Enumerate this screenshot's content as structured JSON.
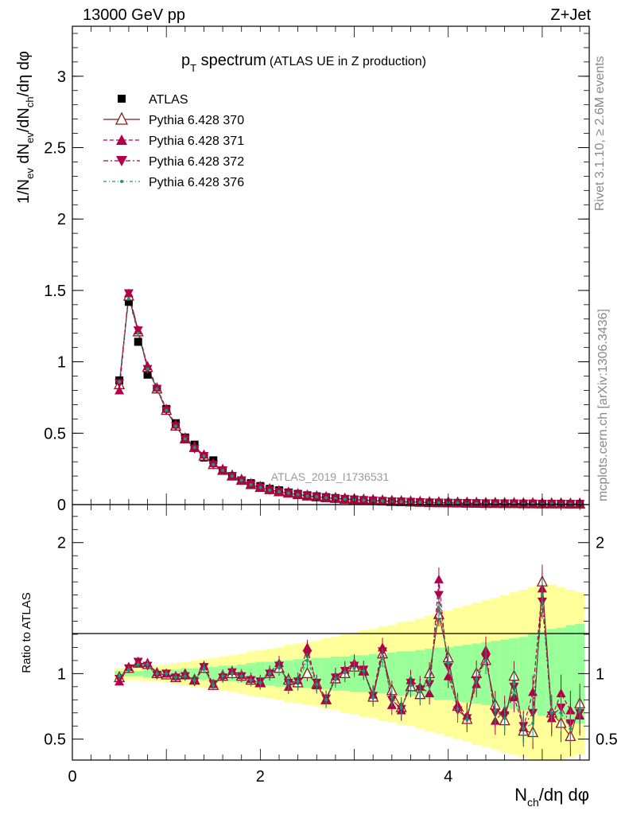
{
  "header": {
    "left": "13000 GeV pp",
    "right": "Z+Jet"
  },
  "side_labels": {
    "top": "Rivet 3.1.10, ≥ 2.6M events",
    "bottom": "mcplots.cern.ch [arXiv:1306.3436]"
  },
  "chart_data": [
    {
      "type": "scatter",
      "panel": "main",
      "title_main": "p",
      "title_sub": "T",
      "title_rest": " spectrum",
      "title_paren": "(ATLAS UE in Z production)",
      "watermark": "ATLAS_2019_I1736531",
      "ylabel": "1/N_ev dN_ev/dN_ch/dη dφ",
      "xlim": [
        0,
        5.5
      ],
      "ylim": [
        0,
        3.35
      ],
      "yticks": [
        0,
        0.5,
        1,
        1.5,
        2,
        2.5,
        3
      ],
      "ytick_labels": [
        "0",
        "0.5",
        "1",
        "1.5",
        "2",
        "2.5",
        "3"
      ],
      "x": [
        0.5,
        0.6,
        0.7,
        0.8,
        0.9,
        1.0,
        1.1,
        1.2,
        1.3,
        1.4,
        1.5,
        1.6,
        1.7,
        1.8,
        1.9,
        2.0,
        2.1,
        2.2,
        2.3,
        2.4,
        2.5,
        2.6,
        2.7,
        2.8,
        2.9,
        3.0,
        3.1,
        3.2,
        3.3,
        3.4,
        3.5,
        3.6,
        3.7,
        3.8,
        3.9,
        4.0,
        4.1,
        4.2,
        4.3,
        4.4,
        4.5,
        4.6,
        4.7,
        4.8,
        4.9,
        5.0,
        5.1,
        5.2,
        5.3,
        5.4
      ],
      "series": [
        {
          "name": "ATLAS",
          "color": "#000000",
          "marker": "square",
          "values": [
            0.87,
            1.42,
            1.14,
            0.91,
            0.81,
            0.67,
            0.57,
            0.47,
            0.42,
            0.33,
            0.31,
            0.24,
            0.2,
            0.17,
            0.15,
            0.13,
            0.11,
            0.1,
            0.085,
            0.075,
            0.065,
            0.058,
            0.052,
            0.046,
            0.04,
            0.036,
            0.032,
            0.029,
            0.026,
            0.023,
            0.021,
            0.019,
            0.017,
            0.015,
            0.014,
            0.013,
            0.012,
            0.011,
            0.01,
            0.009,
            0.009,
            0.008,
            0.008,
            0.007,
            0.007,
            0.006,
            0.006,
            0.006,
            0.005,
            0.005
          ]
        },
        {
          "name": "Pythia 6.428 370",
          "color": "#8b1a1a",
          "marker": "triangle-open",
          "dash": "",
          "values": [
            0.84,
            1.46,
            1.21,
            0.96,
            0.81,
            0.66,
            0.55,
            0.46,
            0.4,
            0.34,
            0.28,
            0.24,
            0.2,
            0.17,
            0.14,
            0.12,
            0.105,
            0.09,
            0.08,
            0.07,
            0.06,
            0.054,
            0.048,
            0.043,
            0.038,
            0.034,
            0.031,
            0.028,
            0.025,
            0.022,
            0.02,
            0.018,
            0.016,
            0.014,
            0.013,
            0.012,
            0.011,
            0.01,
            0.009,
            0.008,
            0.008,
            0.007,
            0.007,
            0.006,
            0.006,
            0.005,
            0.005,
            0.005,
            0.004,
            0.004
          ]
        },
        {
          "name": "Pythia 6.428 371",
          "color": "#b0004a",
          "marker": "triangle-up",
          "dash": "5,3",
          "values": [
            0.8,
            1.48,
            1.22,
            0.97,
            0.82,
            0.67,
            0.56,
            0.46,
            0.4,
            0.35,
            0.29,
            0.24,
            0.2,
            0.17,
            0.14,
            0.12,
            0.105,
            0.09,
            0.08,
            0.07,
            0.06,
            0.054,
            0.048,
            0.043,
            0.038,
            0.034,
            0.031,
            0.028,
            0.025,
            0.022,
            0.02,
            0.018,
            0.016,
            0.014,
            0.013,
            0.012,
            0.011,
            0.01,
            0.009,
            0.008,
            0.008,
            0.007,
            0.007,
            0.006,
            0.006,
            0.005,
            0.005,
            0.005,
            0.004,
            0.004
          ]
        },
        {
          "name": "Pythia 6.428 372",
          "color": "#b0004a",
          "marker": "triangle-down",
          "dash": "6,3,2,3",
          "values": [
            0.85,
            1.48,
            1.22,
            0.95,
            0.81,
            0.66,
            0.55,
            0.46,
            0.39,
            0.34,
            0.28,
            0.24,
            0.2,
            0.17,
            0.14,
            0.12,
            0.1,
            0.09,
            0.08,
            0.07,
            0.06,
            0.054,
            0.048,
            0.043,
            0.038,
            0.034,
            0.031,
            0.028,
            0.025,
            0.022,
            0.02,
            0.018,
            0.016,
            0.014,
            0.013,
            0.012,
            0.011,
            0.01,
            0.009,
            0.008,
            0.008,
            0.007,
            0.007,
            0.006,
            0.006,
            0.005,
            0.005,
            0.005,
            0.004,
            0.004
          ]
        },
        {
          "name": "Pythia 6.428 376",
          "color": "#1a9a6a",
          "marker": "dot",
          "dash": "4,3,1,3",
          "values": [
            0.86,
            1.44,
            1.2,
            0.95,
            0.81,
            0.66,
            0.55,
            0.46,
            0.4,
            0.34,
            0.28,
            0.24,
            0.2,
            0.17,
            0.14,
            0.12,
            0.1,
            0.09,
            0.08,
            0.07,
            0.06,
            0.054,
            0.048,
            0.043,
            0.038,
            0.034,
            0.031,
            0.028,
            0.025,
            0.022,
            0.02,
            0.018,
            0.016,
            0.014,
            0.013,
            0.012,
            0.011,
            0.01,
            0.009,
            0.008,
            0.008,
            0.007,
            0.007,
            0.006,
            0.006,
            0.005,
            0.005,
            0.005,
            0.004,
            0.004
          ]
        }
      ]
    },
    {
      "type": "line",
      "panel": "ratio",
      "ylabel": "Ratio to ATLAS",
      "xlabel_main": "N",
      "xlabel_sub": "ch",
      "xlabel_rest": "/dη dφ",
      "xlim": [
        0,
        5.5
      ],
      "ylim": [
        0.34,
        2.29
      ],
      "xticks": [
        0,
        2,
        4
      ],
      "xtick_labels": [
        "0",
        "2",
        "4"
      ],
      "yticks": [
        0.5,
        1,
        2
      ],
      "ytick_labels": [
        "0.5",
        "1",
        "2"
      ],
      "x": [
        0.5,
        0.6,
        0.7,
        0.8,
        0.9,
        1.0,
        1.1,
        1.2,
        1.3,
        1.4,
        1.5,
        1.6,
        1.7,
        1.8,
        1.9,
        2.0,
        2.1,
        2.2,
        2.3,
        2.4,
        2.5,
        2.6,
        2.7,
        2.8,
        2.9,
        3.0,
        3.1,
        3.2,
        3.3,
        3.4,
        3.5,
        3.6,
        3.7,
        3.8,
        3.9,
        4.0,
        4.1,
        4.2,
        4.3,
        4.4,
        4.5,
        4.6,
        4.7,
        4.8,
        4.9,
        5.0,
        5.1,
        5.2,
        5.3,
        5.4
      ],
      "green_band_half": [
        0.02,
        0.02,
        0.02,
        0.03,
        0.03,
        0.03,
        0.03,
        0.04,
        0.04,
        0.05,
        0.05,
        0.06,
        0.06,
        0.07,
        0.08,
        0.09,
        0.09,
        0.1,
        0.1,
        0.11,
        0.11,
        0.12,
        0.12,
        0.13,
        0.13,
        0.14,
        0.14,
        0.15,
        0.15,
        0.16,
        0.17,
        0.17,
        0.18,
        0.19,
        0.2,
        0.2,
        0.21,
        0.22,
        0.23,
        0.24,
        0.25,
        0.26,
        0.27,
        0.28,
        0.3,
        0.32,
        0.34,
        0.35,
        0.37,
        0.38
      ],
      "yellow_band_half": [
        0.04,
        0.05,
        0.05,
        0.06,
        0.06,
        0.07,
        0.08,
        0.09,
        0.1,
        0.11,
        0.12,
        0.13,
        0.14,
        0.15,
        0.17,
        0.18,
        0.19,
        0.2,
        0.22,
        0.23,
        0.24,
        0.25,
        0.27,
        0.28,
        0.3,
        0.31,
        0.33,
        0.34,
        0.36,
        0.37,
        0.39,
        0.4,
        0.42,
        0.44,
        0.46,
        0.48,
        0.5,
        0.52,
        0.54,
        0.56,
        0.58,
        0.6,
        0.62,
        0.64,
        0.66,
        0.68,
        0.68,
        0.66,
        0.64,
        0.62
      ],
      "series": [
        {
          "name": "Pythia 6.428 370",
          "color": "#8b1a1a",
          "values": [
            0.97,
            1.04,
            1.08,
            1.07,
            1.0,
            0.99,
            0.97,
            0.99,
            0.95,
            1.04,
            0.91,
            0.98,
            1.0,
            0.98,
            0.95,
            0.93,
            1.0,
            1.04,
            0.95,
            0.93,
            1.0,
            0.92,
            0.8,
            0.96,
            1.0,
            1.05,
            1.02,
            0.82,
            1.15,
            0.87,
            0.74,
            0.9,
            0.84,
            1.0,
            1.45,
            1.12,
            0.75,
            0.65,
            1.0,
            1.1,
            0.76,
            0.64,
            0.98,
            0.56,
            0.55,
            1.7,
            0.7,
            0.62,
            0.52,
            0.77
          ]
        },
        {
          "name": "Pythia 6.428 371",
          "color": "#b0004a",
          "values": [
            0.94,
            1.05,
            1.08,
            1.08,
            1.01,
            1.0,
            0.98,
            0.99,
            0.95,
            1.06,
            0.92,
            0.99,
            1.02,
            0.99,
            0.96,
            0.93,
            1.01,
            1.08,
            0.9,
            0.95,
            1.2,
            0.91,
            0.8,
            0.98,
            1.03,
            1.08,
            1.02,
            0.84,
            1.2,
            0.76,
            0.72,
            0.95,
            0.9,
            0.85,
            1.72,
            0.98,
            0.76,
            0.68,
            0.92,
            1.18,
            0.64,
            0.72,
            0.82,
            0.59,
            0.86,
            1.65,
            0.66,
            0.85,
            0.72,
            0.68
          ]
        },
        {
          "name": "Pythia 6.428 372",
          "color": "#b0004a",
          "values": [
            0.96,
            1.04,
            1.09,
            1.06,
            0.99,
            1.0,
            0.97,
            0.98,
            0.94,
            1.05,
            0.92,
            0.97,
            1.01,
            0.98,
            0.95,
            0.94,
            1.0,
            1.06,
            0.93,
            0.94,
            1.15,
            0.93,
            0.81,
            0.97,
            1.02,
            1.06,
            1.03,
            0.83,
            1.17,
            0.8,
            0.73,
            0.93,
            0.88,
            0.92,
            1.6,
            1.05,
            0.72,
            0.66,
            0.95,
            1.12,
            0.7,
            0.68,
            0.9,
            0.6,
            0.7,
            1.55,
            0.68,
            0.74,
            0.62,
            0.7
          ]
        },
        {
          "name": "Pythia 6.428 376",
          "color": "#1a9a6a",
          "values": [
            0.98,
            1.03,
            1.07,
            1.07,
            1.0,
            1.0,
            0.97,
            0.98,
            0.95,
            1.04,
            0.91,
            0.98,
            1.0,
            0.98,
            0.95,
            0.93,
            1.0,
            1.05,
            0.93,
            0.94,
            1.1,
            0.92,
            0.8,
            0.96,
            1.01,
            1.04,
            1.02,
            0.82,
            1.12,
            0.82,
            0.74,
            0.91,
            0.86,
            0.94,
            1.5,
            1.08,
            0.73,
            0.65,
            0.96,
            1.1,
            0.72,
            0.66,
            0.92,
            0.58,
            0.62,
            1.6,
            0.7,
            0.7,
            0.58,
            0.72
          ]
        }
      ]
    }
  ]
}
